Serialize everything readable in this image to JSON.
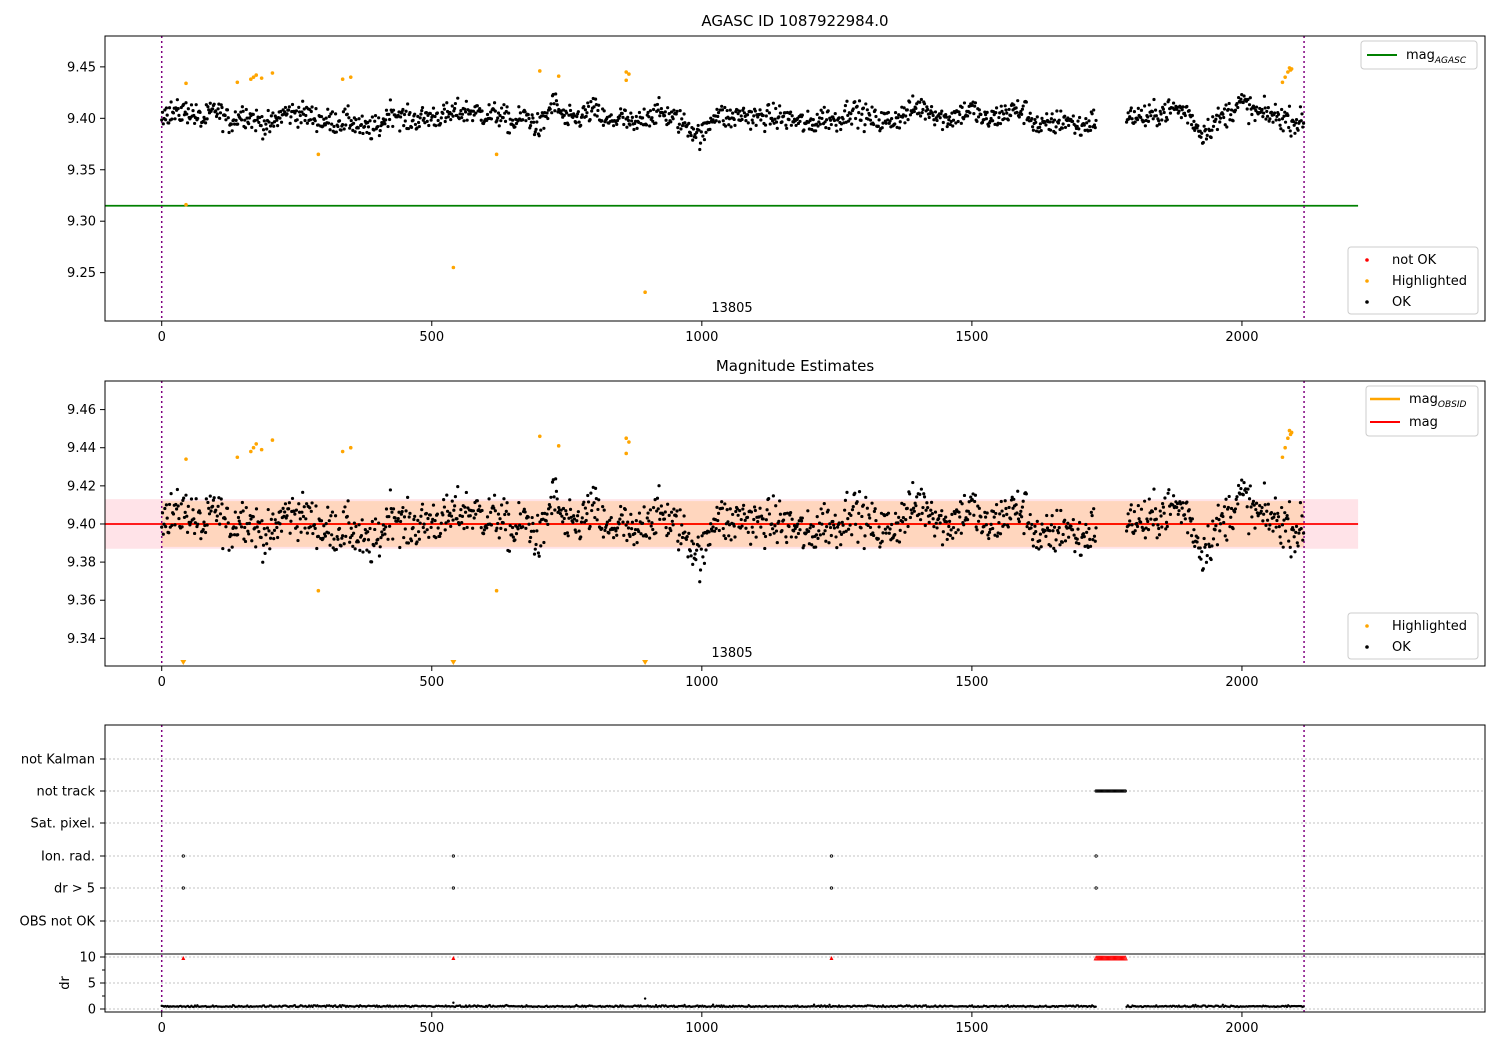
{
  "colors": {
    "ok": "#000000",
    "highlighted": "#ffa500",
    "not_ok": "#ff0000",
    "agasc_line": "#008000",
    "mag_line": "#ff0000",
    "mag_obsid": "#ffa500",
    "band_fill": "#ffc0cb",
    "band_obsid_fill": "#ffd2b0",
    "obsid_boundary": "#800080"
  },
  "chart_data": [
    {
      "type": "scatter",
      "title": "AGASC ID 1087922984.0",
      "obsid_label": "13805",
      "xlim": [
        -105,
        2450
      ],
      "ylim": [
        9.203,
        9.48
      ],
      "xticks": [
        0,
        500,
        1000,
        1500,
        2000
      ],
      "yticks": [
        "9.25",
        "9.30",
        "9.35",
        "9.40",
        "9.45"
      ],
      "ytick_values": [
        9.25,
        9.3,
        9.35,
        9.4,
        9.45
      ],
      "obsid_boundaries": [
        0,
        2115
      ],
      "mag_agasc": 9.315,
      "mag_agasc_xrange": [
        -105,
        2215
      ],
      "series": [
        {
          "name": "not OK",
          "marker": "dot"
        },
        {
          "name": "Highlighted",
          "marker": "dot"
        },
        {
          "name": "OK",
          "marker": "dot"
        }
      ],
      "ok_summary": {
        "x_range": [
          0,
          2115
        ],
        "gap": [
          1730,
          1785
        ],
        "center": 9.4,
        "spread": 0.015
      },
      "highlighted_points": [
        [
          45,
          9.316
        ],
        [
          45,
          9.434
        ],
        [
          140,
          9.435
        ],
        [
          165,
          9.438
        ],
        [
          170,
          9.44
        ],
        [
          175,
          9.442
        ],
        [
          185,
          9.439
        ],
        [
          205,
          9.444
        ],
        [
          290,
          9.365
        ],
        [
          335,
          9.438
        ],
        [
          350,
          9.44
        ],
        [
          540,
          9.255
        ],
        [
          620,
          9.365
        ],
        [
          700,
          9.446
        ],
        [
          735,
          9.441
        ],
        [
          860,
          9.437
        ],
        [
          860,
          9.445
        ],
        [
          865,
          9.443
        ],
        [
          895,
          9.231
        ],
        [
          2075,
          9.435
        ],
        [
          2080,
          9.44
        ],
        [
          2085,
          9.445
        ],
        [
          2088,
          9.449
        ],
        [
          2090,
          9.447
        ],
        [
          2092,
          9.448
        ]
      ],
      "legend_upper": [
        {
          "label": "mag",
          "subscript": "AGASC"
        }
      ],
      "legend_lower": [
        "not OK",
        "Highlighted",
        "OK"
      ]
    },
    {
      "type": "scatter",
      "title": "Magnitude Estimates",
      "obsid_label": "13805",
      "xlim": [
        -105,
        2450
      ],
      "ylim": [
        9.3255,
        9.475
      ],
      "xticks": [
        0,
        500,
        1000,
        1500,
        2000
      ],
      "yticks": [
        "9.34",
        "9.36",
        "9.38",
        "9.40",
        "9.42",
        "9.44",
        "9.46"
      ],
      "ytick_values": [
        9.34,
        9.36,
        9.38,
        9.4,
        9.42,
        9.44,
        9.46
      ],
      "obsid_boundaries": [
        0,
        2115
      ],
      "mag": 9.4,
      "mag_band": [
        9.387,
        9.413
      ],
      "mag_band_xrange": [
        -105,
        2215
      ],
      "mag_obsid": 9.4,
      "mag_obsid_band": [
        9.388,
        9.412
      ],
      "mag_obsid_xrange": [
        0,
        2115
      ],
      "ok_summary": {
        "x_range": [
          0,
          2115
        ],
        "gap": [
          1730,
          1785
        ],
        "center": 9.4,
        "spread": 0.015
      },
      "highlighted_points": [
        [
          45,
          9.434
        ],
        [
          140,
          9.435
        ],
        [
          165,
          9.438
        ],
        [
          170,
          9.44
        ],
        [
          175,
          9.442
        ],
        [
          185,
          9.439
        ],
        [
          205,
          9.444
        ],
        [
          290,
          9.365
        ],
        [
          335,
          9.438
        ],
        [
          350,
          9.44
        ],
        [
          620,
          9.365
        ],
        [
          700,
          9.446
        ],
        [
          735,
          9.441
        ],
        [
          860,
          9.437
        ],
        [
          860,
          9.445
        ],
        [
          865,
          9.443
        ],
        [
          2075,
          9.435
        ],
        [
          2080,
          9.44
        ],
        [
          2085,
          9.445
        ],
        [
          2088,
          9.449
        ],
        [
          2090,
          9.447
        ],
        [
          2092,
          9.448
        ]
      ],
      "out_of_range_markers_x": [
        40,
        540,
        895
      ],
      "legend_upper": [
        {
          "label": "mag",
          "subscript": "OBSID"
        },
        {
          "label": "mag",
          "subscript": ""
        }
      ],
      "legend_lower": [
        "Highlighted",
        "OK"
      ]
    },
    {
      "type": "scatter",
      "title": "",
      "xlim": [
        -105,
        2450
      ],
      "xticks": [
        0,
        500,
        1000,
        1500,
        2000
      ],
      "obsid_boundaries": [
        0,
        2115
      ],
      "flag_rows": [
        "not Kalman",
        "not track",
        "Sat. pixel.",
        "Ion. rad.",
        "dr > 5",
        "OBS not OK"
      ],
      "flag_points": {
        "not track": {
          "x_range": [
            1730,
            1785
          ]
        },
        "Ion. rad.": {
          "x": [
            40,
            540,
            1240,
            1730
          ]
        },
        "dr > 5": {
          "x": [
            40,
            540,
            1240,
            1730
          ]
        }
      },
      "dr_ylabel": "dr",
      "dr_yticks": [
        "0",
        "5",
        "10"
      ],
      "dr_ytick_values": [
        0,
        5,
        10
      ],
      "dr_ylim": [
        -0.5,
        10.5
      ],
      "dr_baseline": 0.4,
      "dr_high_x": [
        40,
        540,
        1240
      ],
      "dr_high_range": [
        1730,
        1785
      ],
      "dr_high_value": 9.8
    }
  ]
}
